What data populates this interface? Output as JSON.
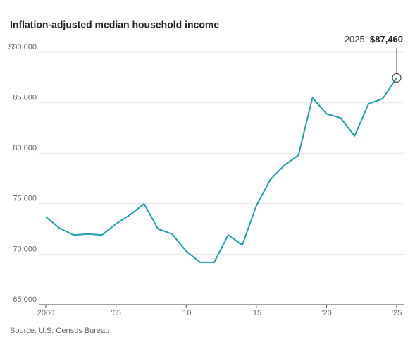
{
  "chart_data": {
    "type": "line",
    "title": "Inflation-adjusted median household income",
    "source": "Source: U.S. Census Bureau",
    "annotation_label": "2025:",
    "annotation_value": "$87,460",
    "x": [
      2000,
      2001,
      2002,
      2003,
      2004,
      2005,
      2006,
      2007,
      2008,
      2009,
      2010,
      2011,
      2012,
      2013,
      2014,
      2015,
      2016,
      2017,
      2018,
      2019,
      2020,
      2021,
      2022,
      2023,
      2024,
      2025
    ],
    "values": [
      73700,
      72550,
      71900,
      72000,
      71900,
      73000,
      73900,
      75000,
      72500,
      72000,
      70300,
      69200,
      69200,
      71900,
      70900,
      74800,
      77400,
      78800,
      79800,
      85500,
      83900,
      83500,
      81700,
      84900,
      85400,
      87460
    ],
    "color": "#1a9fb3",
    "xlim": [
      2000,
      2025
    ],
    "xticks": [
      2000,
      {
        "value": 2005,
        "label": "’05"
      },
      {
        "value": 2010,
        "label": "’10"
      },
      {
        "value": 2015,
        "label": "’15"
      },
      {
        "value": 2020,
        "label": "’20"
      },
      {
        "value": 2025,
        "label": "’25"
      }
    ],
    "ylim": [
      65000,
      90000
    ],
    "yticks": [
      {
        "value": 65000,
        "label": "65,000"
      },
      {
        "value": 70000,
        "label": "70,000"
      },
      {
        "value": 75000,
        "label": "75,000"
      },
      {
        "value": 80000,
        "label": "80,000"
      },
      {
        "value": 85000,
        "label": "85,000"
      },
      {
        "value": 90000,
        "label": "$90,000"
      }
    ],
    "grid": true
  }
}
